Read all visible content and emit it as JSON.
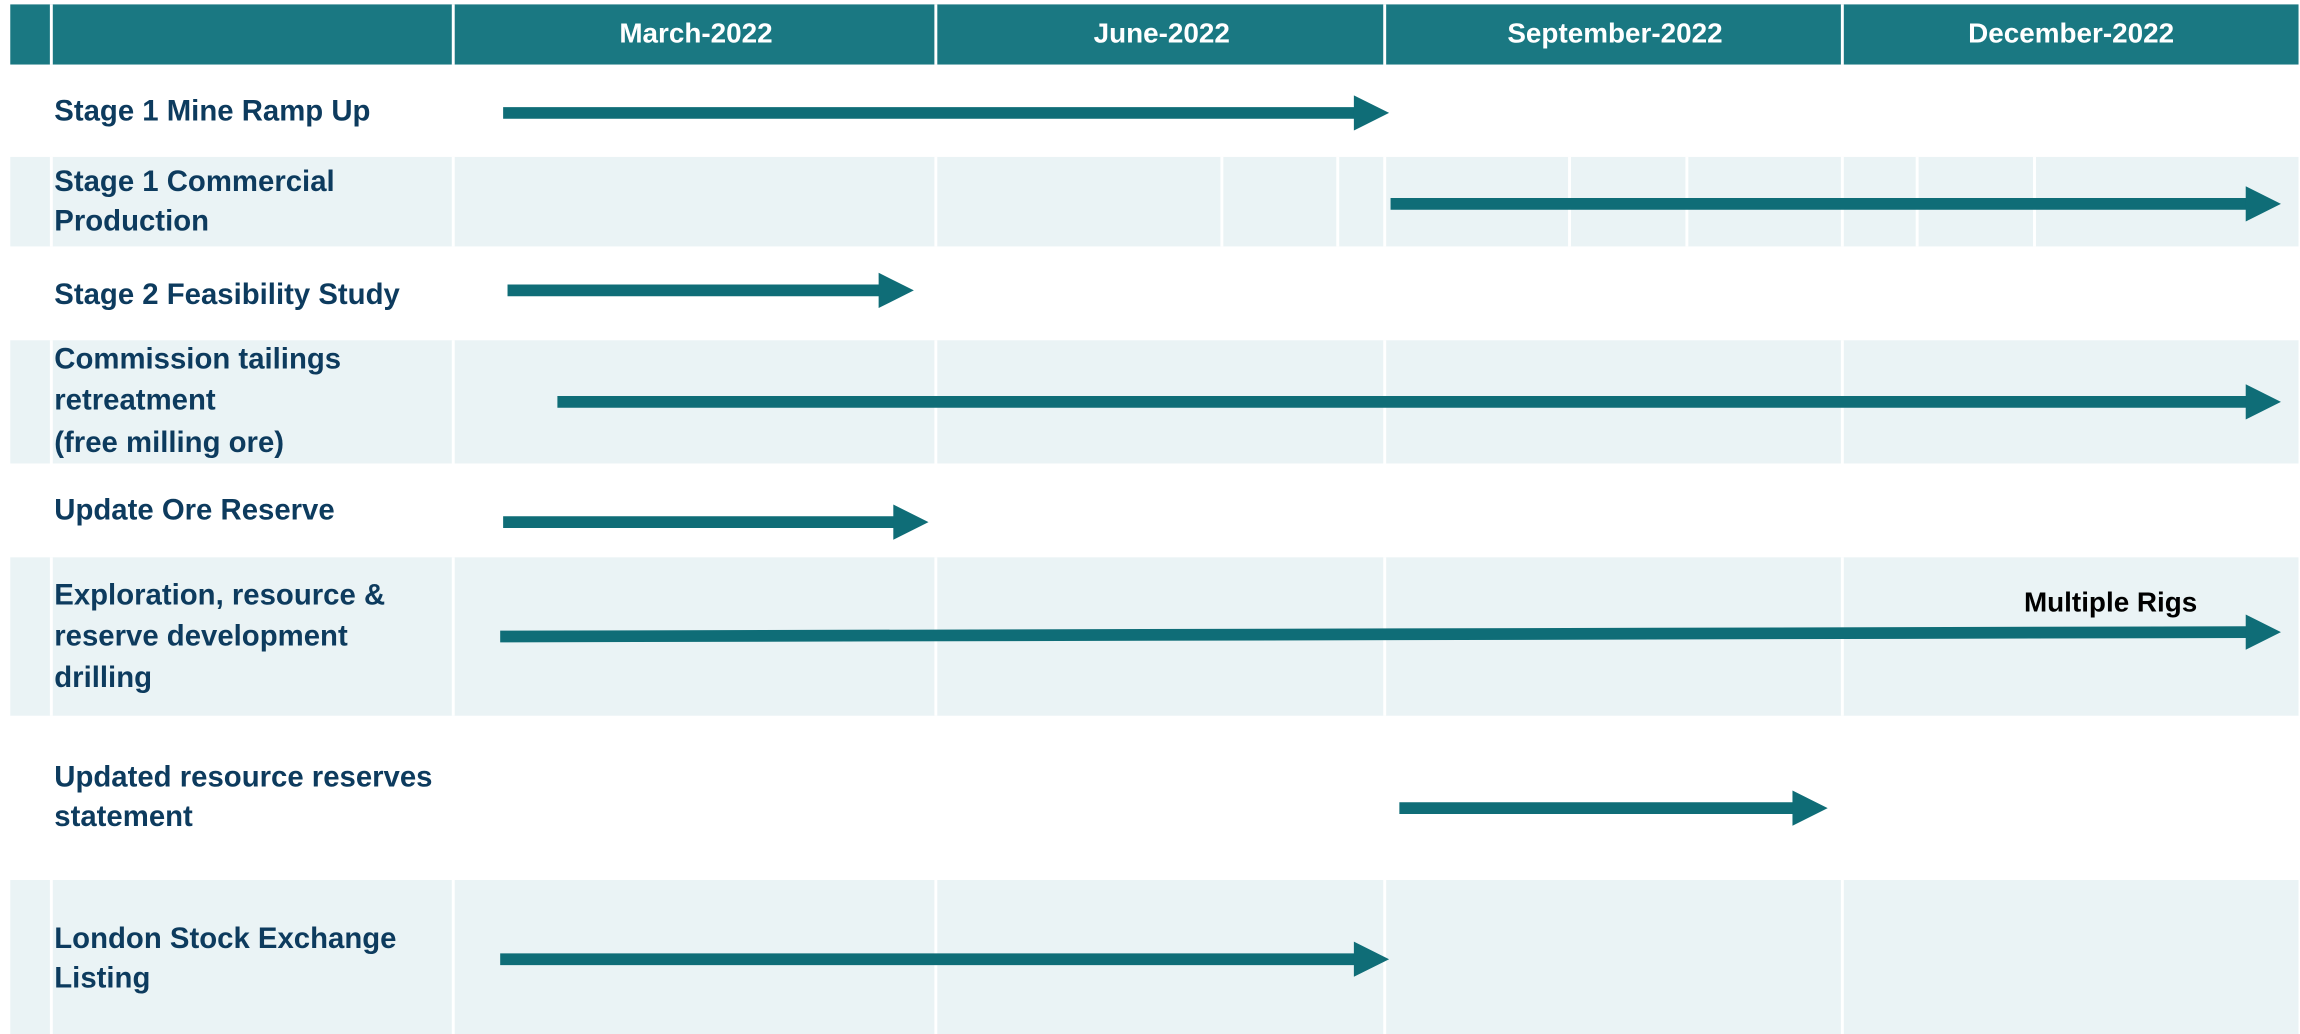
{
  "header": {
    "columns": [
      "March-2022",
      "June-2022",
      "September-2022",
      "December-2022"
    ]
  },
  "rows": [
    {
      "label": [
        "Stage 1 Mine Ramp Up"
      ]
    },
    {
      "label": [
        "Stage 1 Commercial",
        "Production"
      ]
    },
    {
      "label": [
        "Stage 2 Feasibility Study"
      ]
    },
    {
      "label": [
        "Commission tailings",
        "retreatment",
        "(free milling ore)"
      ]
    },
    {
      "label": [
        "Update Ore Reserve"
      ]
    },
    {
      "label": [
        "Exploration, resource &",
        "reserve development",
        "drilling"
      ]
    },
    {
      "label": [
        "Updated resource reserves",
        "statement"
      ]
    },
    {
      "label": [
        "London Stock Exchange",
        "Listing"
      ]
    }
  ],
  "annotation": "Multiple Rigs"
}
